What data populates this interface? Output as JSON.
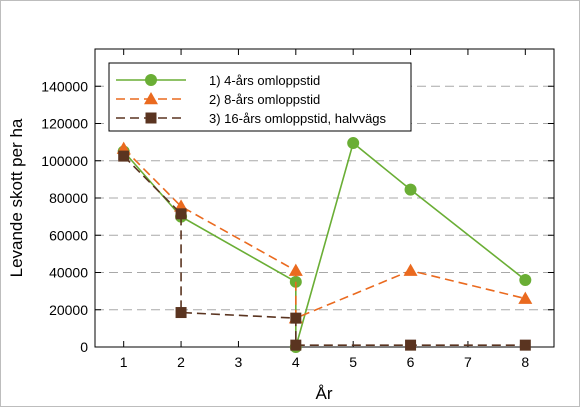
{
  "chart_data": {
    "type": "line",
    "xlabel": "År",
    "ylabel": "Levande skott per ha",
    "xlim": [
      0.5,
      8.5
    ],
    "ylim": [
      0,
      160000
    ],
    "x_ticks": [
      1,
      2,
      3,
      4,
      5,
      6,
      7,
      8
    ],
    "y_ticks": [
      0,
      20000,
      40000,
      60000,
      80000,
      100000,
      120000,
      140000
    ],
    "grid": "horizontal dashed",
    "legend_position": "top-left",
    "series": [
      {
        "name": "1) 4-års omloppstid",
        "color": "#6aae35",
        "marker": "circle",
        "line_style": "solid",
        "x": [
          1,
          2,
          4,
          4,
          5,
          6,
          8
        ],
        "y": [
          105000,
          70000,
          35000,
          0,
          109500,
          84500,
          36000
        ]
      },
      {
        "name": "2) 8-års omloppstid",
        "color": "#ea6a1f",
        "marker": "triangle",
        "line_style": "dashed",
        "x": [
          1,
          2,
          4,
          4,
          6,
          8
        ],
        "y": [
          106500,
          75500,
          41000,
          15500,
          41000,
          26000
        ]
      },
      {
        "name": "3) 16-års omloppstid, halvvägs",
        "color": "#5a3420",
        "marker": "square",
        "line_style": "dashed",
        "x": [
          1,
          2,
          2,
          4,
          4,
          6,
          8
        ],
        "y": [
          102500,
          71500,
          18500,
          15500,
          1000,
          1000,
          1000
        ]
      }
    ]
  }
}
